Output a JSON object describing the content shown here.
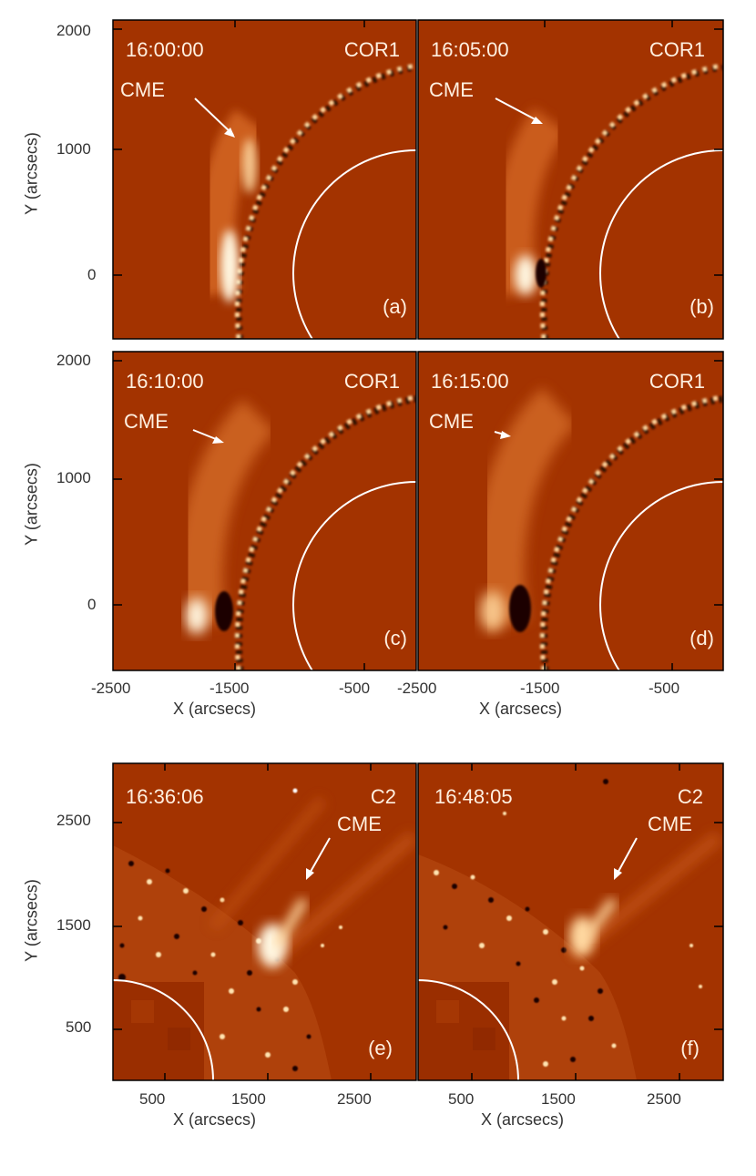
{
  "panels": [
    {
      "id": "a",
      "time": "16:00:00",
      "instrument": "COR1",
      "letter": "(a)",
      "label": "CME"
    },
    {
      "id": "b",
      "time": "16:05:00",
      "instrument": "COR1",
      "letter": "(b)",
      "label": "CME"
    },
    {
      "id": "c",
      "time": "16:10:00",
      "instrument": "COR1",
      "letter": "(c)",
      "label": "CME"
    },
    {
      "id": "d",
      "time": "16:15:00",
      "instrument": "COR1",
      "letter": "(d)",
      "label": "CME"
    },
    {
      "id": "e",
      "time": "16:36:06",
      "instrument": "C2",
      "letter": "(e)",
      "label": "CME"
    },
    {
      "id": "f",
      "time": "16:48:05",
      "instrument": "C2",
      "letter": "(f)",
      "label": "CME"
    }
  ],
  "top_axes": {
    "ylabel": "Y (arcsecs)",
    "xlabel": "X (arcsecs)",
    "yticks": [
      "2000",
      "1000",
      "0"
    ],
    "xticks_left": [
      "-2500",
      "-1500",
      "-500"
    ],
    "xticks_right": [
      "-2500",
      "-1500",
      "-500"
    ]
  },
  "bottom_axes": {
    "ylabel": "Y (arcsecs)",
    "xlabel": "X (arcsecs)",
    "yticks": [
      "2500",
      "1500",
      "500"
    ],
    "xticks_left": [
      "500",
      "1500",
      "2500"
    ],
    "xticks_right": [
      "500",
      "1500",
      "2500"
    ]
  },
  "colors": {
    "background": "#a33300",
    "feature": "#ffe3b0",
    "dark": "#1a0500",
    "text": "#fff0e0"
  }
}
